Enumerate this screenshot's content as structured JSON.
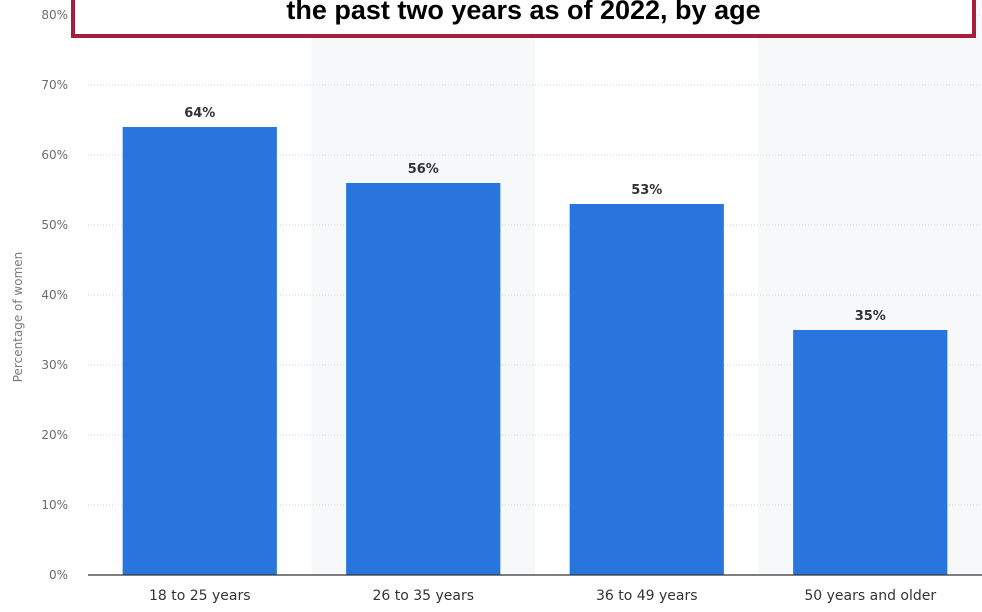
{
  "chart_data": {
    "type": "bar",
    "title": "the past two years as of 2022, by age",
    "categories": [
      "18 to 25 years",
      "26 to 35 years",
      "36 to 49 years",
      "50 years and older"
    ],
    "values": [
      64,
      56,
      53,
      35
    ],
    "data_labels": [
      "64%",
      "56%",
      "53%",
      "35%"
    ],
    "ylabel": "Percentage of women",
    "xlabel": "",
    "ylim": [
      0,
      80
    ],
    "yticks": [
      "0%",
      "10%",
      "20%",
      "30%",
      "40%",
      "50%",
      "60%",
      "70%",
      "80%"
    ],
    "grid": true,
    "bar_color": "#2876dd",
    "accent_color": "#a61e3c"
  }
}
